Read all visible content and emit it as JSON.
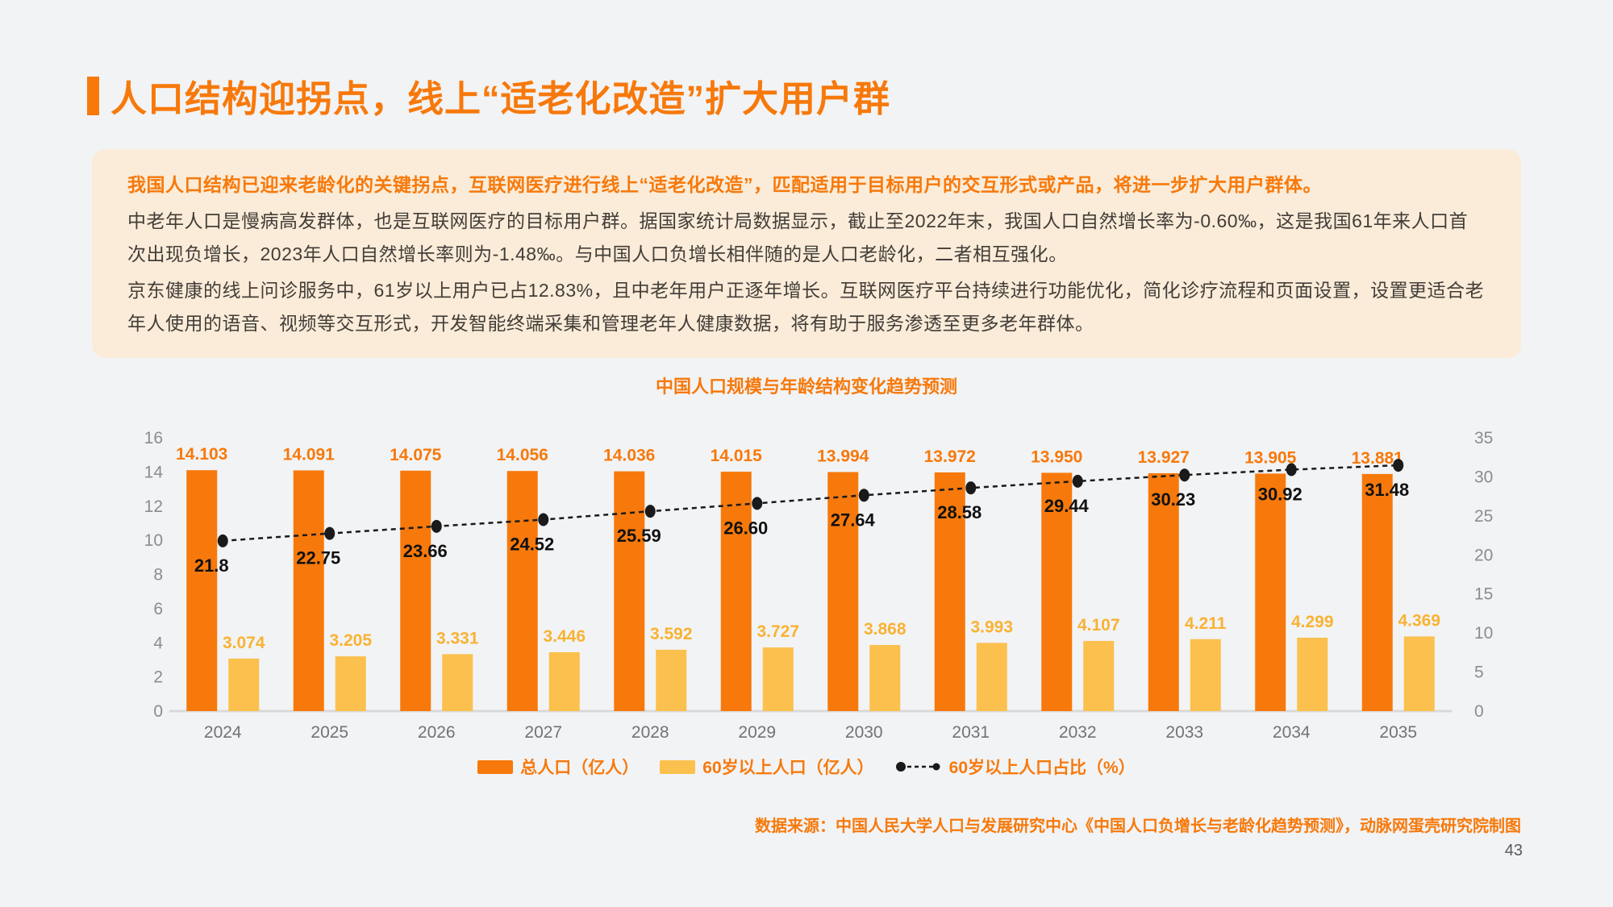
{
  "page": {
    "background": "#F2F3F5",
    "number": "43"
  },
  "header": {
    "title": "人口结构迎拐点，线上“适老化改造”扩大用户群",
    "accent_color": "#F7790B"
  },
  "summary_box": {
    "background": "#FAECD9",
    "highlight": "我国人口结构已迎来老龄化的关键拐点，互联网医疗进行线上“适老化改造”，匹配适用于目标用户的交互形式或产品，将进一步扩大用户群体。",
    "para2": "中老年人口是慢病高发群体，也是互联网医疗的目标用户群。据国家统计局数据显示，截止至2022年末，我国人口自然增长率为-0.60‰，这是我国61年来人口首次出现负增长，2023年人口自然增长率则为-1.48‰。与中国人口负增长相伴随的是人口老龄化，二者相互强化。",
    "para3": "京东健康的线上问诊服务中，61岁以上用户已占12.83%，且中老年用户正逐年增长。互联网医疗平台持续进行功能优化，简化诊疗流程和页面设置，设置更适合老年人使用的语音、视频等交互形式，开发智能终端采集和管理老年人健康数据，将有助于服务渗透至更多老年群体。"
  },
  "chart_data": {
    "type": "bar",
    "title": "中国人口规模与年龄结构变化趋势预测",
    "categories": [
      "2024",
      "2025",
      "2026",
      "2027",
      "2028",
      "2029",
      "2030",
      "2031",
      "2032",
      "2033",
      "2034",
      "2035"
    ],
    "series": [
      {
        "name": "总人口（亿人）",
        "render": "bar",
        "axis": "left",
        "color": "#F7790B",
        "values": [
          14.103,
          14.091,
          14.075,
          14.056,
          14.036,
          14.015,
          13.994,
          13.972,
          13.95,
          13.927,
          13.905,
          13.881
        ],
        "labels": [
          "14.103",
          "14.091",
          "14.075",
          "14.056",
          "14.036",
          "14.015",
          "13.994",
          "13.972",
          "13.950",
          "13.927",
          "13.905",
          "13.881"
        ]
      },
      {
        "name": "60岁以上人口（亿人）",
        "render": "bar",
        "axis": "left",
        "color": "#FBC04D",
        "label_color": "#F9B233",
        "values": [
          3.074,
          3.205,
          3.331,
          3.446,
          3.592,
          3.727,
          3.868,
          3.993,
          4.107,
          4.211,
          4.299,
          4.369
        ],
        "labels": [
          "3.074",
          "3.205",
          "3.331",
          "3.446",
          "3.592",
          "3.727",
          "3.868",
          "3.993",
          "4.107",
          "4.211",
          "4.299",
          "4.369"
        ]
      },
      {
        "name": "60岁以上人口占比（%）",
        "render": "line",
        "axis": "right",
        "color": "#1A1A1A",
        "values": [
          21.8,
          22.75,
          23.66,
          24.52,
          25.59,
          26.6,
          27.64,
          28.58,
          29.44,
          30.23,
          30.92,
          31.48
        ],
        "labels": [
          "21.8",
          "22.75",
          "23.66",
          "24.52",
          "25.59",
          "26.60",
          "27.64",
          "28.58",
          "29.44",
          "30.23",
          "30.92",
          "31.48"
        ]
      }
    ],
    "left_axis": {
      "min": 0,
      "max": 16,
      "ticks": [
        0,
        2,
        4,
        6,
        8,
        10,
        12,
        14,
        16
      ]
    },
    "right_axis": {
      "min": 0,
      "max": 35,
      "ticks": [
        0,
        5,
        10,
        15,
        20,
        25,
        30,
        35
      ]
    },
    "grid": false,
    "legend_position": "bottom",
    "tick_color": "#8C8C8C",
    "axis_line_color": "#D9D9D9"
  },
  "source": "数据来源：中国人民大学人口与发展研究中心《中国人口负增长与老龄化趋势预测》，动脉网蛋壳研究院制图"
}
